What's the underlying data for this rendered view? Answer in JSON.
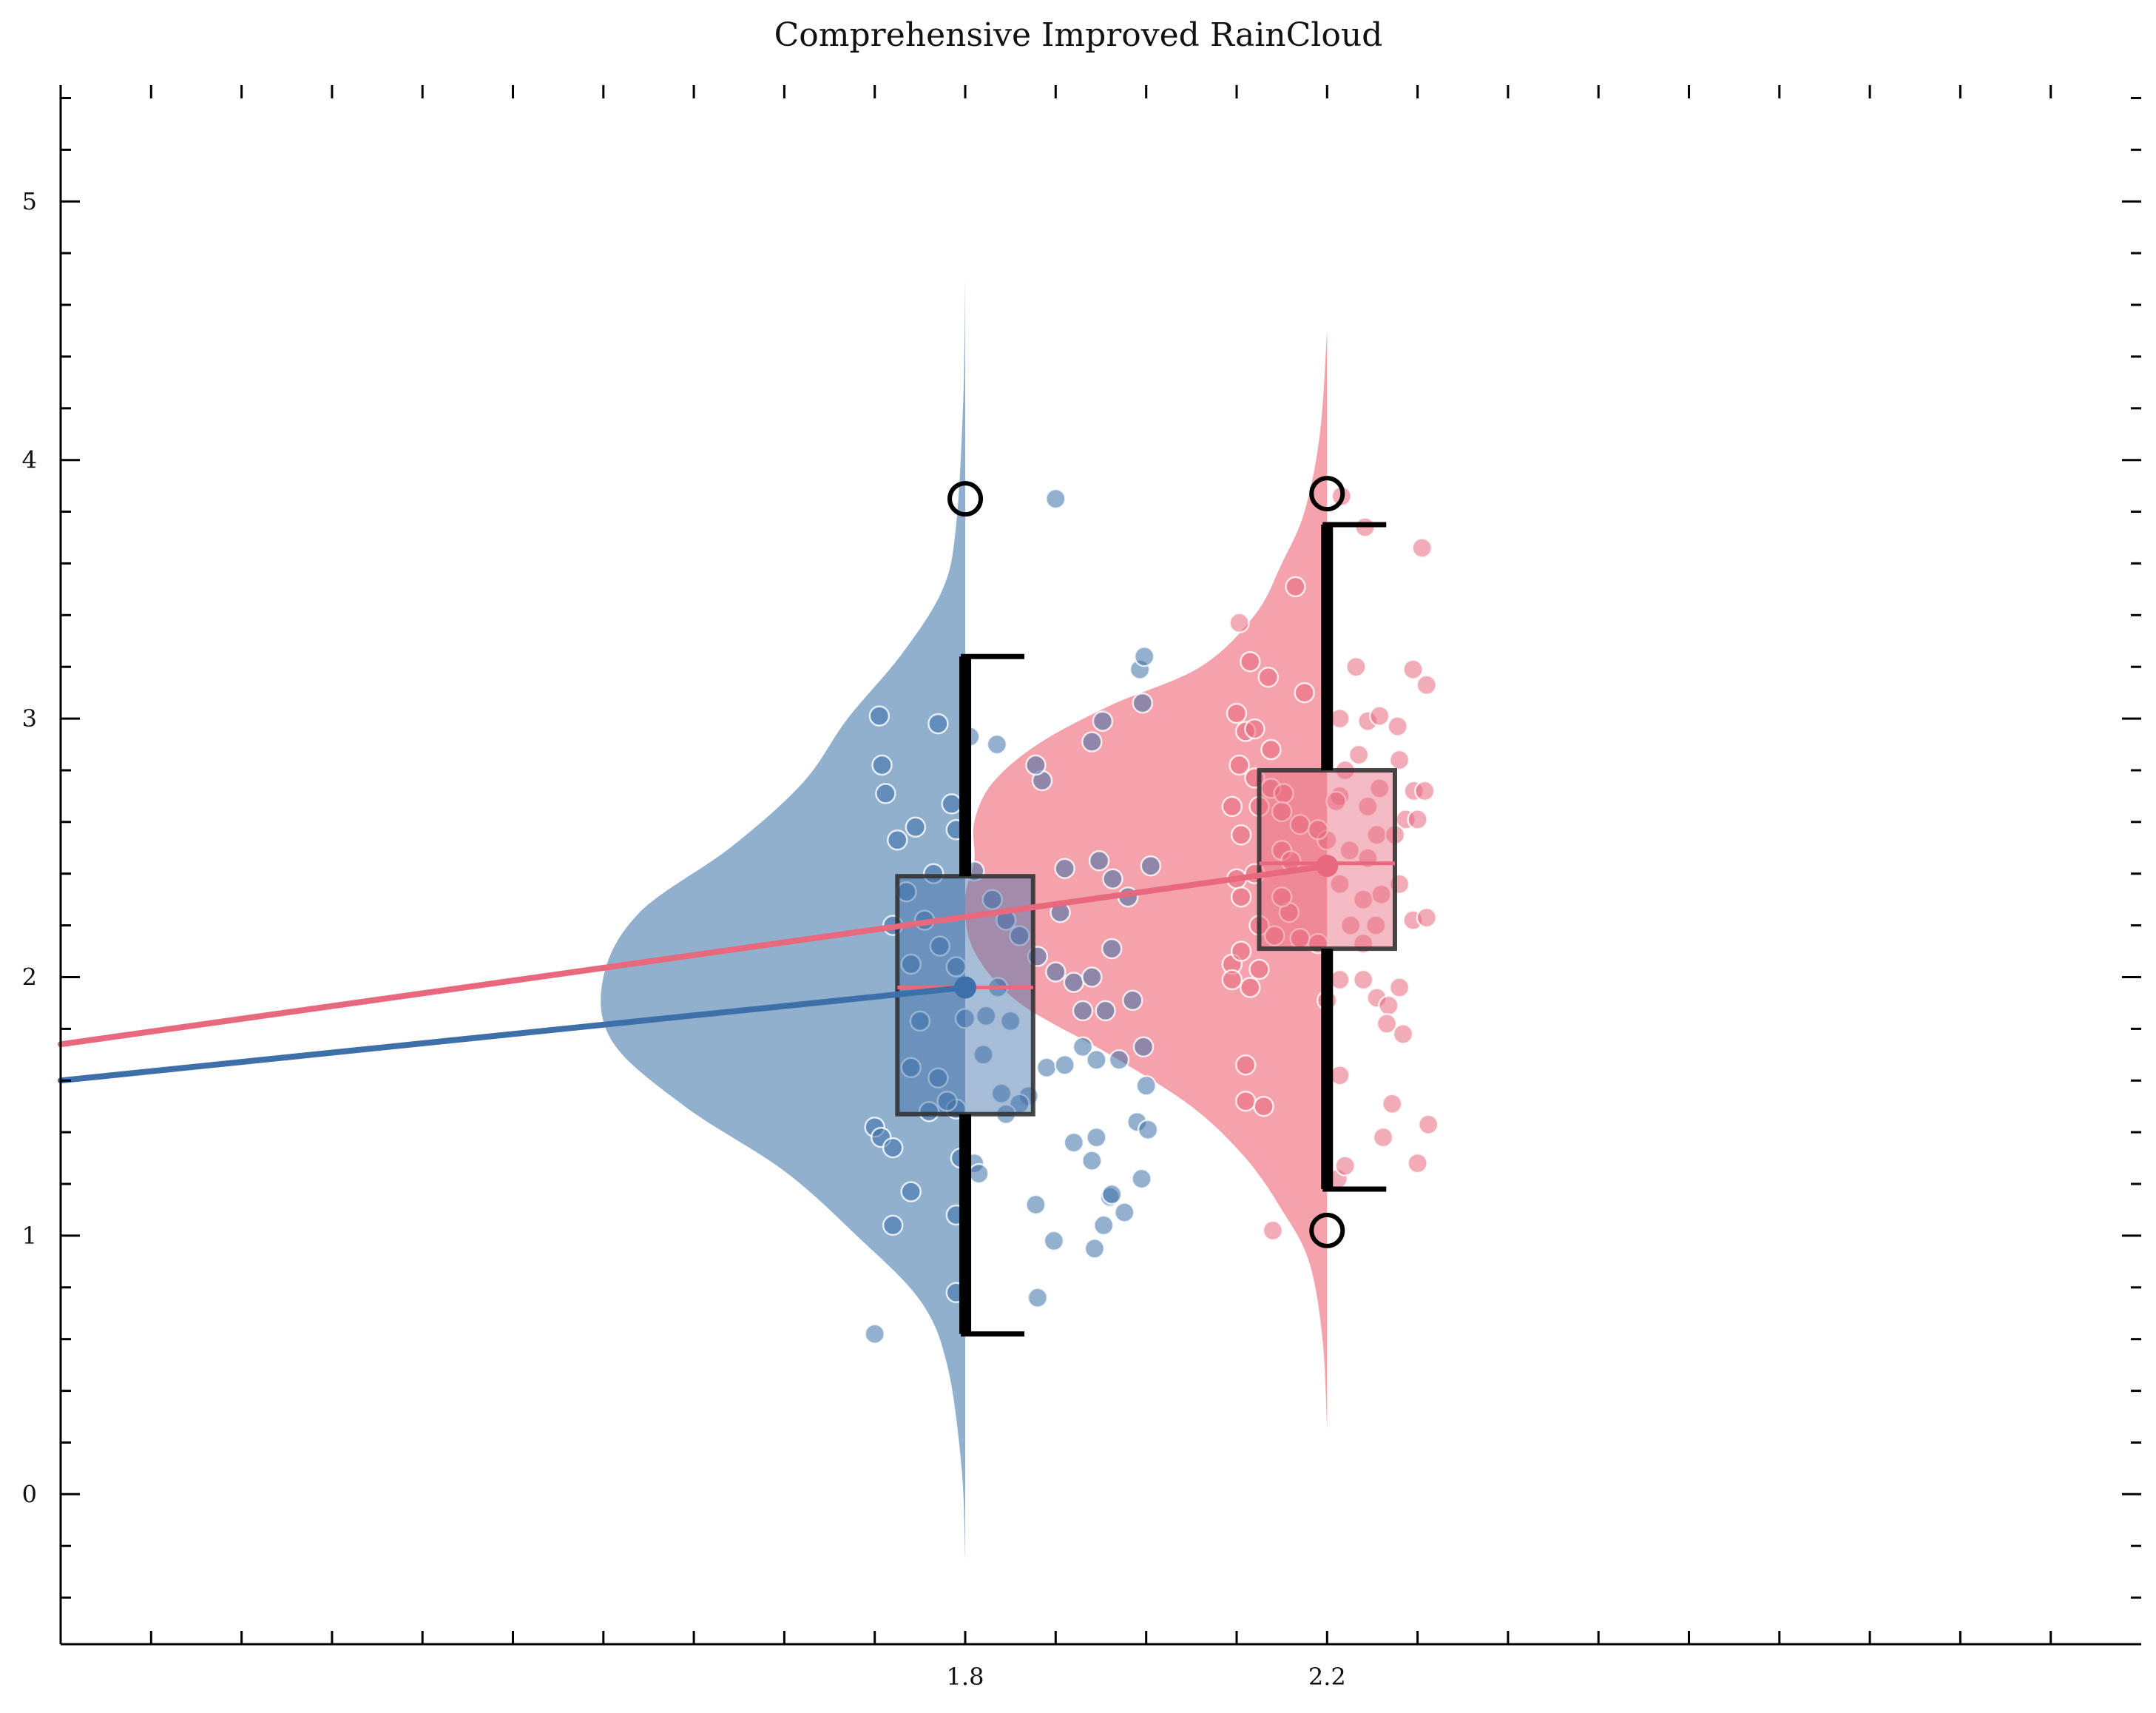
{
  "chart_data": {
    "type": "raincloud",
    "title": "Comprehensive Improved RainCloud",
    "xlabel": "",
    "ylabel": "",
    "xlim": [
      0.8,
      3.1
    ],
    "ylim": [
      -0.58,
      5.45
    ],
    "x_ticks_labeled": [
      1.8,
      2.2
    ],
    "x_ticks_minor": [
      0.9,
      1.0,
      1.1,
      1.2,
      1.3,
      1.4,
      1.5,
      1.6,
      1.7,
      1.8,
      1.9,
      2.0,
      2.1,
      2.2,
      2.3,
      2.4,
      2.5,
      2.6,
      2.7,
      2.8,
      2.9,
      3.0
    ],
    "y_ticks_labeled": [
      0,
      1,
      2,
      3,
      4,
      5
    ],
    "grid": false,
    "series": [
      {
        "x": 1.8,
        "color": "#3d6fa8",
        "fill": "#8eaecd",
        "median": 1.96,
        "q1": 1.47,
        "q3": 2.39,
        "whisker_low": 0.62,
        "whisker_high": 3.24,
        "mean": 1.96,
        "outliers": [
          3.85
        ],
        "density_peak_width": 0.4,
        "density_profile": [
          [
            -0.25,
            0.0
          ],
          [
            0.1,
            0.004
          ],
          [
            0.5,
            0.02
          ],
          [
            0.75,
            0.05
          ],
          [
            1.0,
            0.12
          ],
          [
            1.25,
            0.2
          ],
          [
            1.5,
            0.31
          ],
          [
            1.75,
            0.39
          ],
          [
            2.0,
            0.4
          ],
          [
            2.25,
            0.36
          ],
          [
            2.5,
            0.26
          ],
          [
            2.75,
            0.18
          ],
          [
            3.0,
            0.13
          ],
          [
            3.25,
            0.07
          ],
          [
            3.5,
            0.025
          ],
          [
            3.75,
            0.01
          ],
          [
            4.25,
            0.002
          ],
          [
            4.7,
            0.0
          ]
        ],
        "points": [
          [
            1.705,
            3.01
          ],
          [
            1.708,
            2.82
          ],
          [
            1.712,
            2.71
          ],
          [
            1.77,
            2.98
          ],
          [
            1.725,
            2.53
          ],
          [
            1.745,
            2.58
          ],
          [
            1.79,
            2.57
          ],
          [
            1.805,
            2.93
          ],
          [
            1.835,
            2.9
          ],
          [
            1.785,
            2.67
          ],
          [
            1.765,
            2.4
          ],
          [
            1.735,
            2.33
          ],
          [
            1.72,
            2.2
          ],
          [
            1.755,
            2.22
          ],
          [
            1.772,
            2.12
          ],
          [
            1.74,
            2.05
          ],
          [
            1.79,
            2.04
          ],
          [
            1.81,
            2.41
          ],
          [
            1.83,
            2.3
          ],
          [
            1.845,
            2.22
          ],
          [
            1.86,
            2.16
          ],
          [
            1.88,
            2.08
          ],
          [
            1.9,
            2.02
          ],
          [
            1.92,
            1.98
          ],
          [
            1.885,
            2.76
          ],
          [
            1.878,
            2.82
          ],
          [
            1.94,
            2.91
          ],
          [
            1.952,
            2.99
          ],
          [
            1.993,
            3.19
          ],
          [
            1.998,
            3.24
          ],
          [
            1.996,
            3.06
          ],
          [
            1.91,
            2.42
          ],
          [
            1.948,
            2.45
          ],
          [
            1.98,
            2.31
          ],
          [
            2.005,
            2.43
          ],
          [
            1.963,
            2.38
          ],
          [
            1.94,
            2.0
          ],
          [
            1.955,
            1.87
          ],
          [
            1.93,
            1.87
          ],
          [
            1.985,
            1.91
          ],
          [
            1.962,
            2.11
          ],
          [
            1.905,
            2.25
          ],
          [
            1.75,
            1.83
          ],
          [
            1.74,
            1.65
          ],
          [
            1.8,
            1.84
          ],
          [
            1.82,
            1.7
          ],
          [
            1.85,
            1.83
          ],
          [
            1.87,
            1.54
          ],
          [
            1.89,
            1.65
          ],
          [
            1.91,
            1.66
          ],
          [
            1.93,
            1.73
          ],
          [
            1.945,
            1.68
          ],
          [
            1.97,
            1.68
          ],
          [
            1.997,
            1.73
          ],
          [
            2.0,
            1.58
          ],
          [
            1.99,
            1.44
          ],
          [
            2.002,
            1.41
          ],
          [
            1.945,
            1.38
          ],
          [
            1.92,
            1.36
          ],
          [
            1.94,
            1.29
          ],
          [
            1.7,
            1.42
          ],
          [
            1.707,
            1.38
          ],
          [
            1.72,
            1.34
          ],
          [
            1.74,
            1.17
          ],
          [
            1.72,
            1.04
          ],
          [
            1.79,
            1.08
          ],
          [
            1.76,
            1.48
          ],
          [
            1.79,
            1.49
          ],
          [
            1.78,
            1.52
          ],
          [
            1.77,
            1.61
          ],
          [
            1.795,
            1.3
          ],
          [
            1.81,
            1.28
          ],
          [
            1.84,
            1.55
          ],
          [
            1.86,
            1.51
          ],
          [
            1.898,
            0.98
          ],
          [
            1.943,
            0.95
          ],
          [
            1.953,
            1.04
          ],
          [
            1.96,
            1.15
          ],
          [
            1.962,
            1.16
          ],
          [
            1.976,
            1.09
          ],
          [
            1.995,
            1.22
          ],
          [
            1.7,
            0.62
          ],
          [
            1.79,
            0.78
          ],
          [
            1.88,
            0.76
          ],
          [
            1.815,
            1.24
          ],
          [
            1.878,
            1.12
          ],
          [
            1.9,
            3.85
          ],
          [
            1.823,
            1.85
          ],
          [
            1.836,
            1.96
          ],
          [
            1.845,
            1.47
          ]
        ]
      },
      {
        "x": 2.2,
        "color": "#e8687d",
        "fill": "#f4a1ab",
        "median": 2.44,
        "q1": 2.11,
        "q3": 2.8,
        "whisker_low": 1.18,
        "whisker_high": 3.75,
        "mean": 2.43,
        "outliers": [
          3.87,
          1.02
        ],
        "density_peak_width": 0.4,
        "density_profile": [
          [
            0.25,
            0.0
          ],
          [
            0.6,
            0.005
          ],
          [
            0.9,
            0.02
          ],
          [
            1.1,
            0.05
          ],
          [
            1.3,
            0.09
          ],
          [
            1.5,
            0.15
          ],
          [
            1.7,
            0.24
          ],
          [
            1.9,
            0.34
          ],
          [
            2.1,
            0.39
          ],
          [
            2.3,
            0.4
          ],
          [
            2.45,
            0.39
          ],
          [
            2.6,
            0.39
          ],
          [
            2.75,
            0.37
          ],
          [
            2.9,
            0.32
          ],
          [
            3.05,
            0.24
          ],
          [
            3.2,
            0.14
          ],
          [
            3.4,
            0.08
          ],
          [
            3.6,
            0.05
          ],
          [
            3.8,
            0.025
          ],
          [
            4.1,
            0.008
          ],
          [
            4.5,
            0.0
          ]
        ],
        "points": [
          [
            2.103,
            3.37
          ],
          [
            2.165,
            3.51
          ],
          [
            2.115,
            3.22
          ],
          [
            2.135,
            3.16
          ],
          [
            2.175,
            3.1
          ],
          [
            2.1,
            3.02
          ],
          [
            2.11,
            2.95
          ],
          [
            2.12,
            2.96
          ],
          [
            2.138,
            2.88
          ],
          [
            2.103,
            2.82
          ],
          [
            2.12,
            2.77
          ],
          [
            2.138,
            2.73
          ],
          [
            2.152,
            2.71
          ],
          [
            2.095,
            2.66
          ],
          [
            2.125,
            2.66
          ],
          [
            2.15,
            2.64
          ],
          [
            2.17,
            2.59
          ],
          [
            2.105,
            2.55
          ],
          [
            2.15,
            2.49
          ],
          [
            2.12,
            2.4
          ],
          [
            2.1,
            2.38
          ],
          [
            2.105,
            2.31
          ],
          [
            2.125,
            2.2
          ],
          [
            2.158,
            2.25
          ],
          [
            2.142,
            2.16
          ],
          [
            2.17,
            2.15
          ],
          [
            2.19,
            2.13
          ],
          [
            2.095,
            2.05
          ],
          [
            2.105,
            2.1
          ],
          [
            2.125,
            2.03
          ],
          [
            2.115,
            1.96
          ],
          [
            2.095,
            1.99
          ],
          [
            2.11,
            1.52
          ],
          [
            2.13,
            1.5
          ],
          [
            2.11,
            1.66
          ],
          [
            2.14,
            1.02
          ],
          [
            2.242,
            3.74
          ],
          [
            2.216,
            3.86
          ],
          [
            2.232,
            3.2
          ],
          [
            2.295,
            3.19
          ],
          [
            2.245,
            2.99
          ],
          [
            2.258,
            3.01
          ],
          [
            2.278,
            2.97
          ],
          [
            2.214,
            3.0
          ],
          [
            2.235,
            2.86
          ],
          [
            2.22,
            2.8
          ],
          [
            2.28,
            2.84
          ],
          [
            2.258,
            2.73
          ],
          [
            2.296,
            2.72
          ],
          [
            2.308,
            2.72
          ],
          [
            2.214,
            2.7
          ],
          [
            2.245,
            2.66
          ],
          [
            2.287,
            2.61
          ],
          [
            2.255,
            2.55
          ],
          [
            2.275,
            2.55
          ],
          [
            2.225,
            2.49
          ],
          [
            2.214,
            2.36
          ],
          [
            2.24,
            2.3
          ],
          [
            2.26,
            2.32
          ],
          [
            2.28,
            2.36
          ],
          [
            2.295,
            2.22
          ],
          [
            2.31,
            2.23
          ],
          [
            2.254,
            2.2
          ],
          [
            2.226,
            2.2
          ],
          [
            2.24,
            2.13
          ],
          [
            2.214,
            1.99
          ],
          [
            2.24,
            1.99
          ],
          [
            2.255,
            1.92
          ],
          [
            2.268,
            1.89
          ],
          [
            2.28,
            1.96
          ],
          [
            2.266,
            1.82
          ],
          [
            2.284,
            1.78
          ],
          [
            2.312,
            1.43
          ],
          [
            2.272,
            1.51
          ],
          [
            2.262,
            1.38
          ],
          [
            2.3,
            1.28
          ],
          [
            2.212,
            1.22
          ],
          [
            2.2,
            1.91
          ],
          [
            2.214,
            1.62
          ],
          [
            2.22,
            1.27
          ],
          [
            2.2,
            2.53
          ],
          [
            2.21,
            2.68
          ],
          [
            2.19,
            2.57
          ],
          [
            2.305,
            3.66
          ],
          [
            2.31,
            3.13
          ],
          [
            2.3,
            2.61
          ],
          [
            2.16,
            2.45
          ],
          [
            2.15,
            2.31
          ],
          [
            2.245,
            2.46
          ]
        ]
      }
    ],
    "trend_lines": [
      {
        "color": "#3d6fa8",
        "x": [
          0.8,
          1.8
        ],
        "y": [
          1.6,
          1.96
        ]
      },
      {
        "color": "#e8687d",
        "x": [
          0.8,
          2.2
        ],
        "y": [
          1.74,
          2.43
        ]
      }
    ]
  }
}
